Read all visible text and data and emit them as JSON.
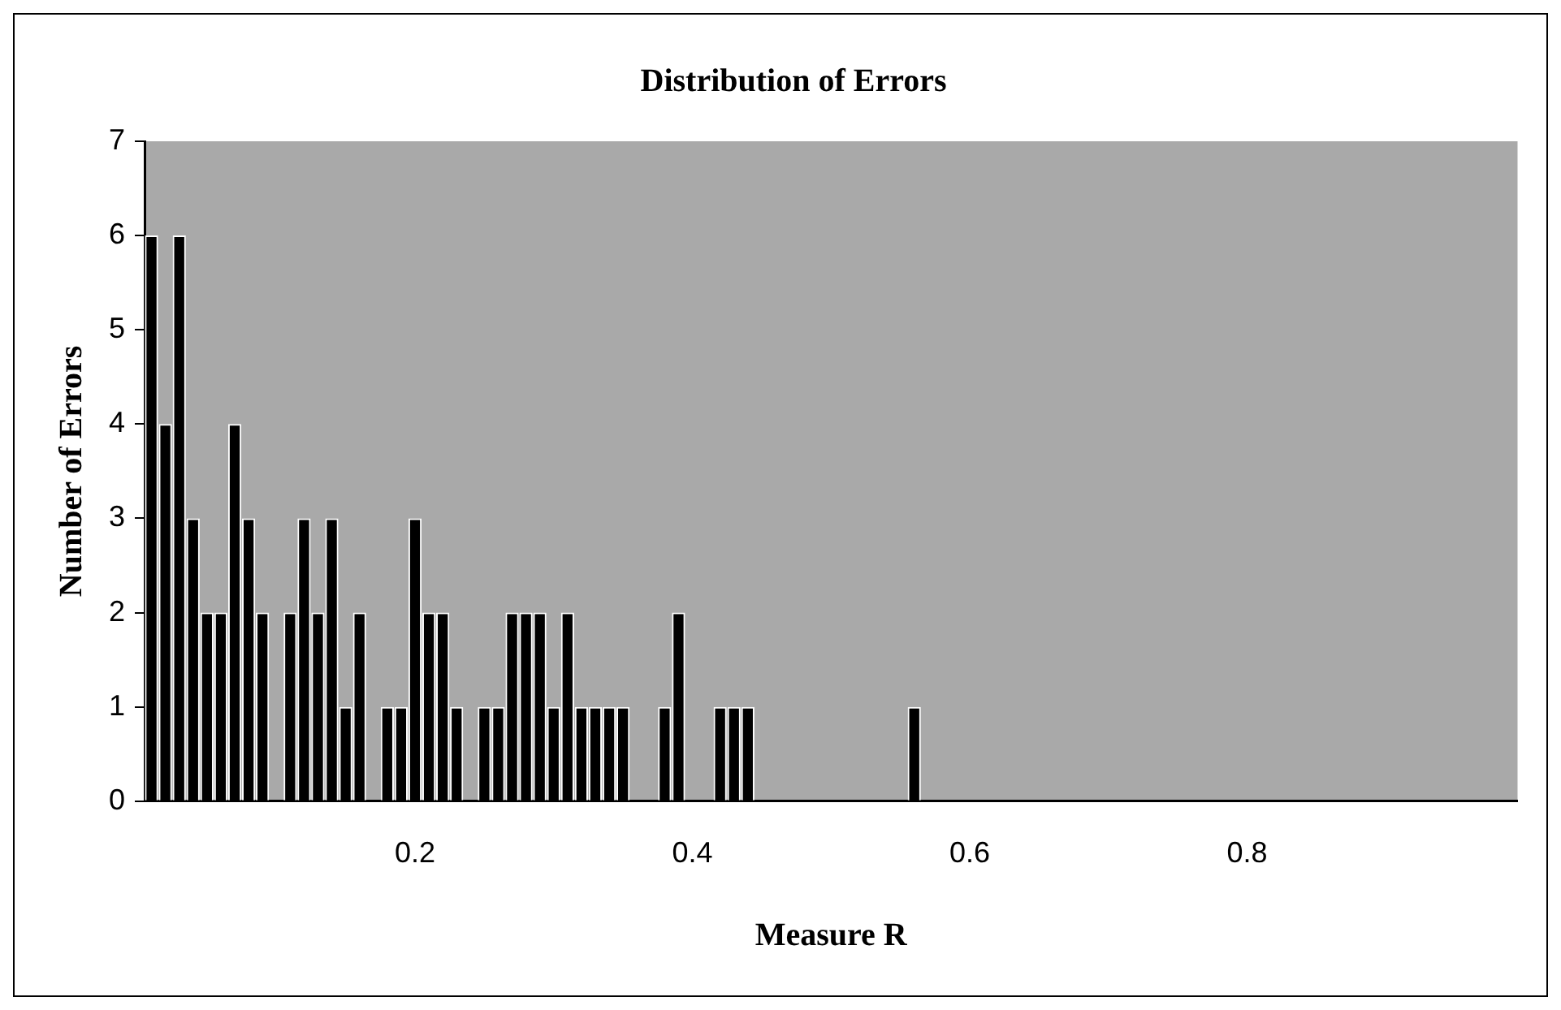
{
  "chart_data": {
    "type": "bar",
    "title": "Distribution of Errors",
    "xlabel": "Measure R",
    "ylabel": "Number of Errors",
    "categories": [
      null,
      null,
      null,
      null,
      null,
      null,
      null,
      null,
      null,
      null,
      null,
      null,
      null,
      null,
      null,
      null,
      null,
      null,
      null,
      "0.2",
      null,
      null,
      null,
      null,
      null,
      null,
      null,
      null,
      null,
      null,
      null,
      null,
      null,
      null,
      null,
      null,
      null,
      null,
      null,
      "0.4",
      null,
      null,
      null,
      null,
      null,
      null,
      null,
      null,
      null,
      null,
      null,
      null,
      null,
      null,
      null,
      null,
      null,
      null,
      null,
      "0.6",
      null,
      null,
      null,
      null,
      null,
      null,
      null,
      null,
      null,
      null,
      null,
      null,
      null,
      null,
      null,
      null,
      null,
      null,
      null,
      "0.8",
      null,
      null,
      null,
      null,
      null,
      null,
      null,
      null,
      null,
      null,
      null,
      null,
      null,
      null,
      null,
      null,
      null,
      null,
      null
    ],
    "values": [
      6,
      4,
      6,
      3,
      2,
      2,
      4,
      3,
      2,
      0,
      2,
      3,
      2,
      3,
      1,
      2,
      0,
      1,
      1,
      3,
      2,
      2,
      1,
      0,
      1,
      1,
      2,
      2,
      2,
      1,
      2,
      1,
      1,
      1,
      1,
      0,
      0,
      1,
      2,
      0,
      0,
      1,
      1,
      1,
      0,
      0,
      0,
      0,
      0,
      0,
      0,
      0,
      0,
      0,
      0,
      1,
      0,
      0,
      0,
      0,
      0,
      0,
      0,
      0,
      0,
      0,
      0,
      0,
      0,
      0,
      0,
      0,
      0,
      0,
      0,
      0,
      0,
      0,
      0,
      0,
      0,
      0,
      0,
      0,
      0,
      0,
      0,
      0,
      0,
      0,
      0,
      0,
      0,
      0,
      0,
      0,
      0,
      0,
      0
    ],
    "color": "#000000",
    "ylim": [
      0,
      7
    ],
    "yticks": [
      0,
      1,
      2,
      3,
      4,
      5,
      6,
      7
    ],
    "grid": false,
    "legend": false
  }
}
